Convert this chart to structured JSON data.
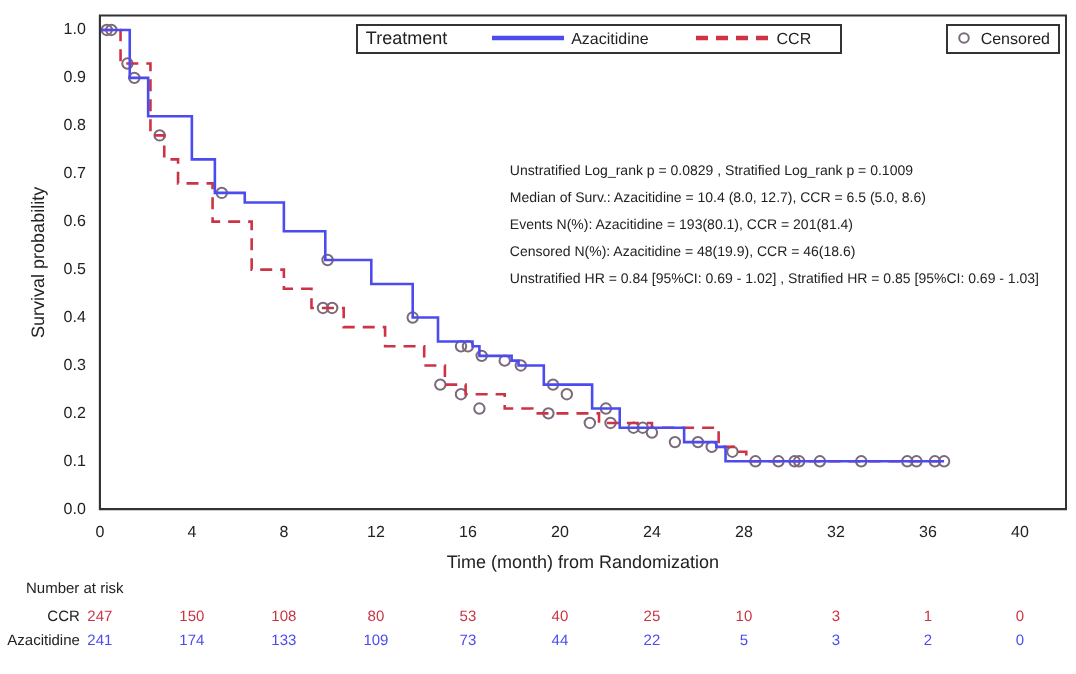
{
  "chart_data": {
    "type": "step",
    "xlabel": "Time (month) from Randomization",
    "ylabel": "Survival probability",
    "legend_title": "Treatment",
    "legend": "top right",
    "grid": false,
    "xlim": [
      0,
      42
    ],
    "xticks": [
      0,
      4,
      8,
      12,
      16,
      20,
      24,
      28,
      32,
      36,
      40
    ],
    "ylim": [
      0,
      1.03
    ],
    "yticks": [
      {
        "value": 0,
        "label": "0.0"
      },
      0.1,
      0.2,
      0.3,
      0.4,
      0.5,
      0.6,
      0.7,
      0.8,
      0.9,
      {
        "value": 1,
        "label": "1.0"
      }
    ],
    "annotations": [
      "Unstratified Log_rank p = 0.0829 , Stratified Log_rank p = 0.1009",
      "Median of Surv.: Azacitidine = 10.4 (8.0, 12.7), CCR = 6.5 (5.0, 8.6)",
      "Events N(%): Azacitidine = 193(80.1), CCR = 201(81.4)",
      "Censored N(%): Azacitidine = 48(19.9), CCR = 46(18.6)",
      "Unstratified HR = 0.84 [95%CI: 0.69 - 1.02] , Stratified HR = 0.85 [95%CI: 0.69 - 1.03]",
      "Number at risk",
      "CCR",
      "247",
      "150",
      "108",
      "80",
      "53",
      "40",
      "25",
      "10",
      "3",
      "1",
      "0",
      "Azacitidine",
      "241",
      "174",
      "133",
      "109",
      "73",
      "44",
      "22",
      "5",
      "3",
      "2",
      "0"
    ],
    "series": [
      {
        "name": "Azacitidine",
        "type": "step",
        "color": "#4b4bef",
        "line_style": "solid",
        "x": [
          0,
          1.3,
          2.1,
          4.0,
          5.0,
          6.3,
          8.0,
          9.8,
          11.8,
          13.6,
          14.7,
          16.2,
          16.5,
          17.9,
          18.2,
          19.3,
          21.4,
          22.6,
          25.4,
          26.8,
          27.2,
          36.7
        ],
        "values": [
          1.0,
          0.9,
          0.82,
          0.73,
          0.66,
          0.64,
          0.58,
          0.52,
          0.47,
          0.4,
          0.35,
          0.34,
          0.32,
          0.31,
          0.3,
          0.26,
          0.21,
          0.17,
          0.14,
          0.13,
          0.1,
          0.1
        ]
      },
      {
        "name": "CCR",
        "type": "step",
        "color": "#cc3344",
        "line_style": "dashed",
        "x": [
          0,
          0.9,
          2.2,
          2.8,
          3.4,
          4.9,
          6.6,
          8.0,
          9.2,
          10.6,
          12.4,
          14.1,
          15.0,
          15.9,
          17.6,
          18.8,
          21.7,
          24.0,
          26.9,
          27.8,
          28.1,
          36.7
        ],
        "values": [
          1.0,
          0.93,
          0.78,
          0.73,
          0.68,
          0.6,
          0.5,
          0.46,
          0.42,
          0.38,
          0.34,
          0.3,
          0.26,
          0.24,
          0.21,
          0.2,
          0.18,
          0.17,
          0.13,
          0.12,
          0.1,
          0.1
        ]
      },
      {
        "name": "Censored",
        "type": "scatter",
        "marker": "circle",
        "color": "#7a6a7a",
        "x": [
          0.3,
          1.5,
          5.3,
          9.9,
          13.6,
          15.7,
          16.0,
          16.6,
          17.6,
          18.3,
          19.7,
          20.3,
          22.0,
          23.2,
          24.0,
          25.0,
          26.0,
          0.5,
          1.2,
          2.6,
          9.7,
          10.1,
          14.8,
          15.7,
          16.5,
          19.5,
          21.3,
          22.2,
          23.6,
          26.6,
          27.5,
          28.5,
          29.5,
          30.2,
          30.4,
          31.3,
          33.1,
          35.1,
          35.5,
          36.3,
          36.7
        ],
        "values": [
          1.0,
          0.9,
          0.66,
          0.52,
          0.4,
          0.34,
          0.34,
          0.32,
          0.31,
          0.3,
          0.26,
          0.24,
          0.21,
          0.17,
          0.16,
          0.14,
          0.14,
          1.0,
          0.93,
          0.78,
          0.42,
          0.42,
          0.26,
          0.24,
          0.21,
          0.2,
          0.18,
          0.18,
          0.17,
          0.13,
          0.12,
          0.1,
          0.1,
          0.1,
          0.1,
          0.1,
          0.1,
          0.1,
          0.1,
          0.1,
          0.1
        ]
      }
    ]
  }
}
